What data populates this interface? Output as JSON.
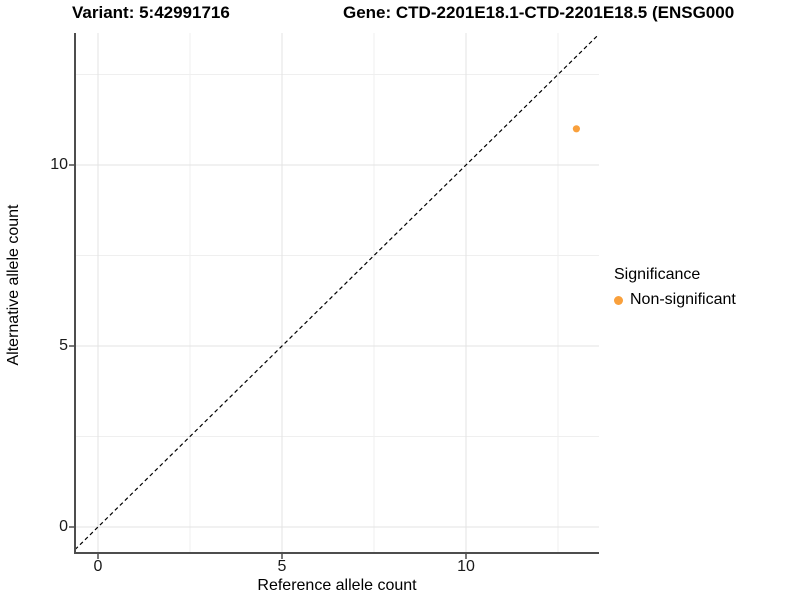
{
  "titles": {
    "variant": "Variant: 5:42991716",
    "gene": "Gene: CTD-2201E18.1-CTD-2201E18.5 (ENSG000"
  },
  "axes": {
    "x_label": "Reference allele count",
    "y_label": "Alternative allele count"
  },
  "legend": {
    "title": "Significance",
    "items": [
      {
        "label": "Non-significant",
        "marker_icon": "circle-dot",
        "color": "#F9A03C"
      }
    ]
  },
  "colors": {
    "point": "#F9A03C",
    "axis_line": "#4d4d4d",
    "grid_major": "#e3e3e3",
    "grid_minor": "#efefef",
    "reference_line": "#000000",
    "background": "#ffffff"
  },
  "chart_data": {
    "type": "scatter",
    "title": "Variant: 5:42991716 | Gene: CTD-2201E18.1-CTD-2201E18.5 (ENSG000",
    "xlabel": "Reference allele count",
    "ylabel": "Alternative allele count",
    "series": [
      {
        "name": "Non-significant",
        "color": "#F9A03C",
        "points": [
          {
            "x": 13,
            "y": 11
          }
        ]
      }
    ],
    "x_ticks": [
      0,
      5,
      10
    ],
    "y_ticks": [
      0,
      5,
      10
    ],
    "x_minor_gridlines": [
      2.5,
      7.5,
      12.5
    ],
    "y_minor_gridlines": [
      2.5,
      7.5,
      12.5
    ],
    "xlim": [
      -0.65,
      13.6
    ],
    "ylim": [
      -0.72,
      13.65
    ],
    "grid": true,
    "reference_line": {
      "type": "identity",
      "style": "dashed",
      "color": "#000000"
    },
    "legend_position": "right"
  }
}
